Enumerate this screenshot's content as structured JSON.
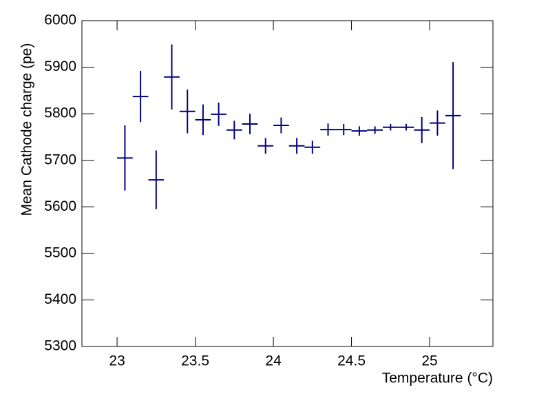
{
  "chart_data": {
    "type": "errorbar",
    "xlabel": "Temperature (°C)",
    "ylabel": "Mean Cathode charge (pe)",
    "color": "#000080",
    "x": [
      23.05,
      23.15,
      23.25,
      23.35,
      23.45,
      23.55,
      23.65,
      23.75,
      23.85,
      23.95,
      24.05,
      24.15,
      24.25,
      24.35,
      24.45,
      24.55,
      24.65,
      24.75,
      24.85,
      24.95,
      25.05,
      25.15
    ],
    "values": [
      5705,
      5837,
      5658,
      5879,
      5805,
      5787,
      5799,
      5765,
      5778,
      5731,
      5775,
      5731,
      5728,
      5766,
      5766,
      5763,
      5765,
      5771,
      5771,
      5765,
      5780,
      5796
    ],
    "errors": [
      70,
      55,
      63,
      70,
      47,
      33,
      25,
      20,
      22,
      17,
      17,
      17,
      14,
      13,
      12,
      10,
      8,
      7,
      7,
      28,
      27,
      115
    ],
    "xerr": 0.05,
    "xlim": [
      22.775,
      25.405
    ],
    "ylim": [
      5300,
      6000
    ],
    "xticks": [
      23,
      23.5,
      24,
      24.5,
      25
    ],
    "yticks": [
      5300,
      5400,
      5500,
      5600,
      5700,
      5800,
      5900,
      6000
    ]
  }
}
